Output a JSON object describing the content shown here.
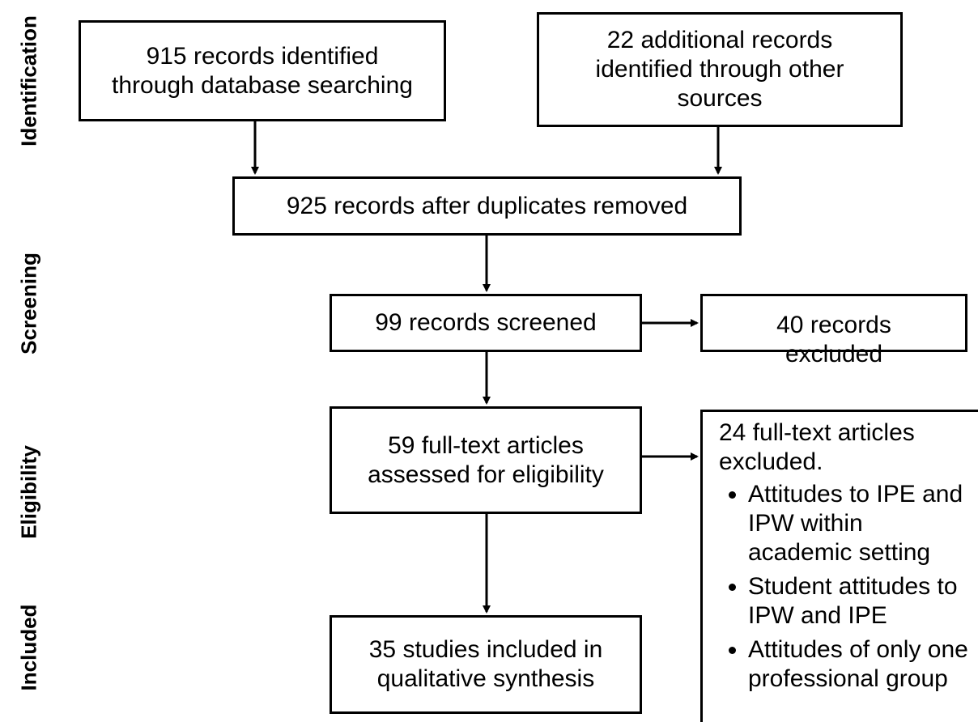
{
  "stages": {
    "identification": "Identification",
    "screening": "Screening",
    "eligibility": "Eligibility",
    "included": "Included"
  },
  "boxes": {
    "database": "915 records identified through database searching",
    "other_sources": "22 additional records identified through other sources",
    "deduplicated": "925 records after duplicates removed",
    "screened": "99 records screened",
    "excluded_records": "40 records excluded",
    "fulltext": "59 full-text articles assessed for eligibility",
    "excluded_fulltext": {
      "heading": "24 full-text articles excluded.",
      "reasons": [
        "Attitudes to IPE and IPW within academic setting",
        "Student attitudes to IPW and IPE",
        "Attitudes of only one professional group"
      ]
    },
    "included": "35 studies included in qualitative synthesis"
  }
}
